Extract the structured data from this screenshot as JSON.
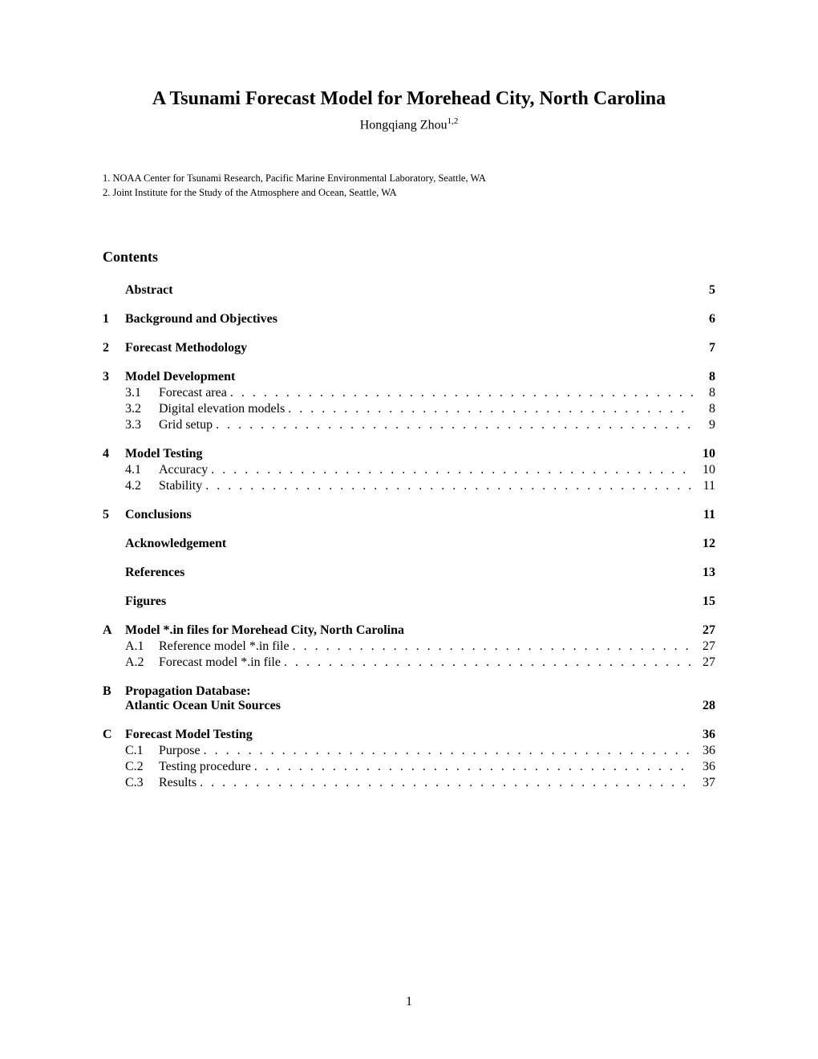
{
  "title": "A Tsunami Forecast Model for Morehead City, North Carolina",
  "author": "Hongqiang Zhou",
  "author_sup": "1,2",
  "affiliations": [
    "1. NOAA Center for Tsunami Research, Pacific Marine Environmental Laboratory, Seattle, WA",
    "2. Joint Institute for the Study of the Atmosphere and Ocean, Seattle, WA"
  ],
  "contents_label": "Contents",
  "toc": [
    {
      "num": "",
      "label": "Abstract",
      "page": "5",
      "children": []
    },
    {
      "num": "1",
      "label": "Background and Objectives",
      "page": "6",
      "children": []
    },
    {
      "num": "2",
      "label": "Forecast Methodology",
      "page": "7",
      "children": []
    },
    {
      "num": "3",
      "label": "Model Development",
      "page": "8",
      "children": [
        {
          "num": "3.1",
          "label": "Forecast area",
          "page": "8"
        },
        {
          "num": "3.2",
          "label": "Digital elevation models",
          "page": "8"
        },
        {
          "num": "3.3",
          "label": "Grid setup",
          "page": "9"
        }
      ]
    },
    {
      "num": "4",
      "label": "Model Testing",
      "page": "10",
      "children": [
        {
          "num": "4.1",
          "label": "Accuracy",
          "page": "10"
        },
        {
          "num": "4.2",
          "label": "Stability",
          "page": "11"
        }
      ]
    },
    {
      "num": "5",
      "label": "Conclusions",
      "page": "11",
      "children": []
    },
    {
      "num": "",
      "label": "Acknowledgement",
      "page": "12",
      "children": []
    },
    {
      "num": "",
      "label": "References",
      "page": "13",
      "children": []
    },
    {
      "num": "",
      "label": "Figures",
      "page": "15",
      "children": []
    },
    {
      "num": "A",
      "label": "Model *.in files for Morehead City, North Carolina",
      "page": "27",
      "children": [
        {
          "num": "A.1",
          "label": "Reference model *.in file",
          "page": "27"
        },
        {
          "num": "A.2",
          "label": "Forecast model *.in file",
          "page": "27"
        }
      ]
    },
    {
      "num": "B",
      "label_line1": "Propagation Database:",
      "label_line2": "Atlantic Ocean Unit Sources",
      "page": "28",
      "multiline": true,
      "children": []
    },
    {
      "num": "C",
      "label": "Forecast Model Testing",
      "page": "36",
      "children": [
        {
          "num": "C.1",
          "label": "Purpose",
          "page": "36"
        },
        {
          "num": "C.2",
          "label": "Testing procedure",
          "page": "36"
        },
        {
          "num": "C.3",
          "label": "Results",
          "page": "37"
        }
      ]
    }
  ],
  "page_number": "1"
}
